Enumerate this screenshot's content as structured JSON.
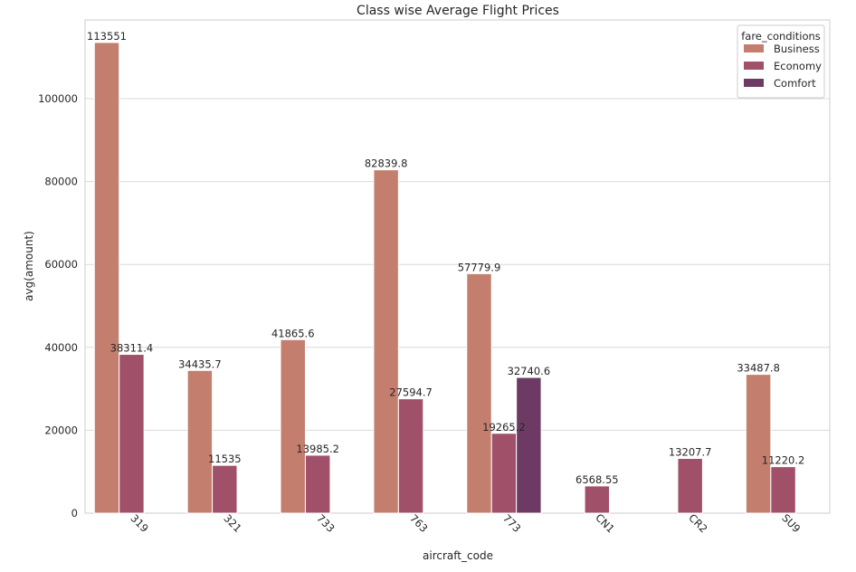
{
  "chart_data": {
    "type": "bar",
    "title": "Class wise Average Flight Prices",
    "xlabel": "aircraft_code",
    "ylabel": "avg(amount)",
    "categories": [
      "319",
      "321",
      "733",
      "763",
      "773",
      "CN1",
      "CR2",
      "SU9"
    ],
    "ylim": [
      0,
      119000
    ],
    "yticks": [
      0,
      20000,
      40000,
      60000,
      80000,
      100000
    ],
    "ytick_labels": [
      "0",
      "20000",
      "40000",
      "60000",
      "80000",
      "100000"
    ],
    "grid": true,
    "legend": {
      "title": "fare_conditions",
      "position": "top-right"
    },
    "series": [
      {
        "name": "Business",
        "color": "#c47e6e",
        "values": [
          113551,
          34435.7,
          41865.6,
          82839.8,
          57779.9,
          null,
          null,
          33487.8
        ],
        "labels": [
          "113551",
          "34435.7",
          "41865.6",
          "82839.8",
          "57779.9",
          null,
          null,
          "33487.8"
        ]
      },
      {
        "name": "Economy",
        "color": "#a05068",
        "values": [
          38311.4,
          11535,
          13985.2,
          27594.7,
          19265.2,
          6568.55,
          13207.7,
          11220.2
        ],
        "labels": [
          "38311.4",
          "11535",
          "13985.2",
          "27594.7",
          "19265.2",
          "6568.55",
          "13207.7",
          "11220.2"
        ]
      },
      {
        "name": "Comfort",
        "color": "#6d3a64",
        "values": [
          null,
          null,
          null,
          null,
          32740.6,
          null,
          null,
          null
        ],
        "labels": [
          null,
          null,
          null,
          null,
          "32740.6",
          null,
          null,
          null
        ]
      }
    ]
  }
}
